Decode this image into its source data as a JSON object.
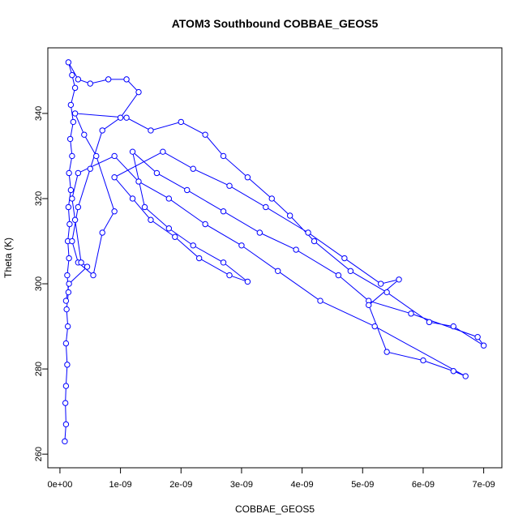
{
  "chart_data": {
    "type": "line",
    "title": "ATOM3 Southbound COBBAE_GEOS5",
    "x_label": "COBBAE_GEOS5",
    "y_label": "Theta (K)",
    "color": "#0000ff",
    "x": [
      8e-11,
      1e-10,
      9e-11,
      1e-10,
      1.2e-10,
      1e-10,
      1.3e-10,
      1.1e-10,
      1.4e-10,
      1.2e-10,
      1.5e-10,
      1.3e-10,
      1.6e-10,
      1.4e-10,
      1.8e-10,
      1.5e-10,
      2e-10,
      1.7e-10,
      2.2e-10,
      1.8e-10,
      2.5e-10,
      2e-10,
      1.4e-10,
      3e-10,
      5e-10,
      8e-10,
      1.1e-09,
      1.3e-09,
      1e-09,
      7e-10,
      5e-10,
      3e-10,
      2e-10,
      3e-10,
      5.5e-10,
      7e-10,
      9e-10,
      6e-10,
      4e-10,
      2.5e-10,
      1.1e-09,
      1.5e-09,
      2e-09,
      2.4e-09,
      2.7e-09,
      3.1e-09,
      3.5e-09,
      3.8e-09,
      4.2e-09,
      4.8e-09,
      5.4e-09,
      6.1e-09,
      6.5e-09,
      7e-09,
      6.9e-09,
      5.8e-09,
      5.1e-09,
      4.6e-09,
      3.9e-09,
      3.3e-09,
      2.7e-09,
      2.1e-09,
      1.6e-09,
      1.2e-09,
      1.4e-09,
      1.8e-09,
      2.2e-09,
      2.7e-09,
      3.1e-09,
      2.8e-09,
      2.3e-09,
      1.9e-09,
      1.5e-09,
      1.2e-09,
      9e-10,
      1.7e-09,
      2.2e-09,
      2.8e-09,
      3.4e-09,
      4.1e-09,
      4.7e-09,
      5.3e-09,
      5.6e-09,
      5.1e-09,
      5.4e-09,
      6e-09,
      6.5e-09,
      6.7e-09,
      5.2e-09,
      4.3e-09,
      3.6e-09,
      3e-09,
      2.4e-09,
      1.8e-09,
      1.3e-09,
      9e-10,
      3e-10,
      2e-10,
      2.5e-10,
      3.5e-10,
      4.5e-10,
      1.5e-10,
      1e-10
    ],
    "values": [
      263,
      267,
      272,
      276,
      281,
      286,
      290,
      294,
      298,
      302,
      306,
      310,
      314,
      318,
      322,
      326,
      330,
      334,
      338,
      342,
      346,
      349,
      352,
      348,
      347,
      348,
      348,
      345,
      339,
      336,
      327,
      318,
      310,
      305,
      302,
      312,
      317,
      330,
      335,
      340,
      339,
      336,
      338,
      335,
      330,
      325,
      320,
      316,
      310,
      303,
      298,
      291,
      290,
      285.5,
      287.5,
      293,
      296,
      302,
      308,
      312,
      317,
      322,
      326,
      331,
      318,
      313,
      309,
      305,
      300.5,
      302,
      306,
      311,
      315,
      320,
      325,
      331,
      327,
      323,
      318,
      312,
      306,
      300,
      301,
      295,
      284,
      282,
      279.5,
      278.3,
      290,
      296,
      303,
      309,
      314,
      320,
      324,
      330,
      326,
      320,
      315,
      305,
      304,
      300,
      296
    ],
    "xlim": [
      -2e-10,
      7.3e-09
    ],
    "ylim": [
      256.8,
      355.4
    ],
    "xticks": [
      {
        "value": 0,
        "label": "0e+00"
      },
      {
        "value": 1e-09,
        "label": "1e-09"
      },
      {
        "value": 2e-09,
        "label": "2e-09"
      },
      {
        "value": 3e-09,
        "label": "3e-09"
      },
      {
        "value": 4e-09,
        "label": "4e-09"
      },
      {
        "value": 5e-09,
        "label": "5e-09"
      },
      {
        "value": 6e-09,
        "label": "6e-09"
      },
      {
        "value": 7e-09,
        "label": "7e-09"
      }
    ],
    "yticks": [
      260,
      280,
      300,
      320,
      340
    ]
  }
}
